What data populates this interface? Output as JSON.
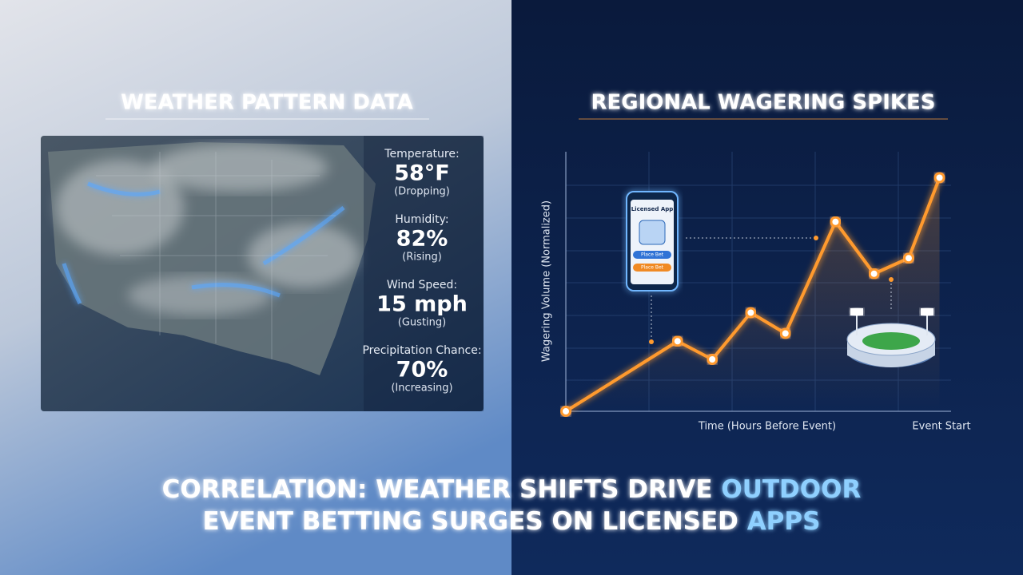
{
  "left_panel": {
    "title": "WEATHER PATTERN DATA",
    "stats": [
      {
        "label": "Temperature:",
        "value": "58°F",
        "note": "(Dropping)"
      },
      {
        "label": "Humidity:",
        "value": "82%",
        "note": "(Rising)"
      },
      {
        "label": "Wind Speed:",
        "value": "15 mph",
        "note": "(Gusting)"
      },
      {
        "label": "Precipitation Chance:",
        "value": "70%",
        "note": "(Increasing)"
      }
    ]
  },
  "right_panel": {
    "title": "REGIONAL WAGERING SPIKES",
    "app": {
      "title": "Licensed App",
      "buttons": [
        "Place Bet",
        "Place Bet"
      ]
    }
  },
  "chart_data": {
    "type": "line",
    "ylabel": "Wagering Volume (Normalized)",
    "xlabel": "Time (Hours Before Event)",
    "x_end_label": "Event Start",
    "x": [
      0,
      29,
      38,
      48,
      57,
      70,
      80,
      89,
      97
    ],
    "values": [
      0,
      27,
      20,
      38,
      30,
      73,
      53,
      59,
      90
    ],
    "color": "#ff9a2e",
    "xlim": [
      0,
      100
    ],
    "ylim": [
      0,
      100
    ]
  },
  "caption": {
    "lines": [
      [
        {
          "text": "CORRELATION: WEATHER SHIFTS DRIVE ",
          "highlight": false
        },
        {
          "text": "OUTDOOR",
          "highlight": true
        }
      ],
      [
        {
          "text": "EVENT BETTING SURGES ON LICENSED ",
          "highlight": false
        },
        {
          "text": "APPS",
          "highlight": true
        }
      ]
    ]
  }
}
